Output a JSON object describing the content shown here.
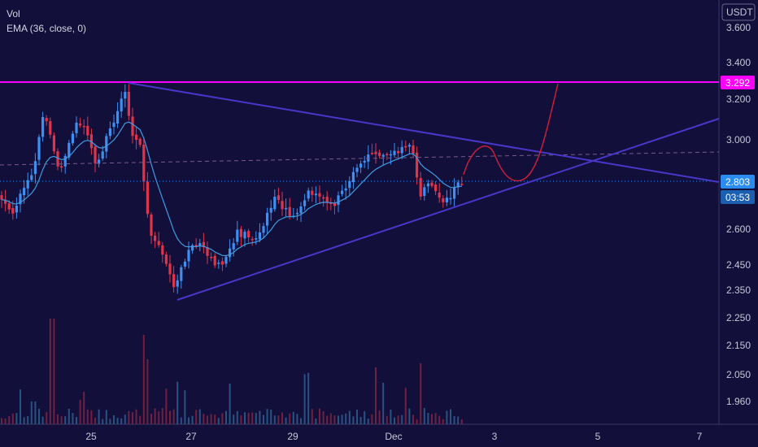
{
  "legend": {
    "volume_label": "Vol",
    "ema_label": "EMA (36, close, 0)"
  },
  "currency": "USDT",
  "chart_data": {
    "type": "candlestick",
    "y_ticks": [
      "3.600",
      "3.400",
      "3.200",
      "3.000",
      "2.800",
      "2.600",
      "2.450",
      "2.350",
      "2.250",
      "2.150",
      "2.050",
      "1.960"
    ],
    "x_ticks": [
      "25",
      "27",
      "29",
      "Dec",
      "3",
      "5",
      "7"
    ],
    "price_labels": {
      "horizontal_level": "3.292",
      "last_price": "2.803",
      "countdown": "03:53"
    },
    "price_level": 3.292,
    "last_price": 2.803,
    "colors": {
      "background": "#120f3a",
      "up": "#3d8ff2",
      "down": "#e0344a",
      "level_line": "#ff00ff",
      "trendline": "#4a36c8",
      "ema": "#3f9ce0",
      "projection": "#c81e3c",
      "last_price_line": "#2a8cf0"
    },
    "grid": false,
    "notes": [
      "symmetrical triangle drawn with two converging trendlines",
      "curved projection path toward the 3.292 level"
    ]
  }
}
